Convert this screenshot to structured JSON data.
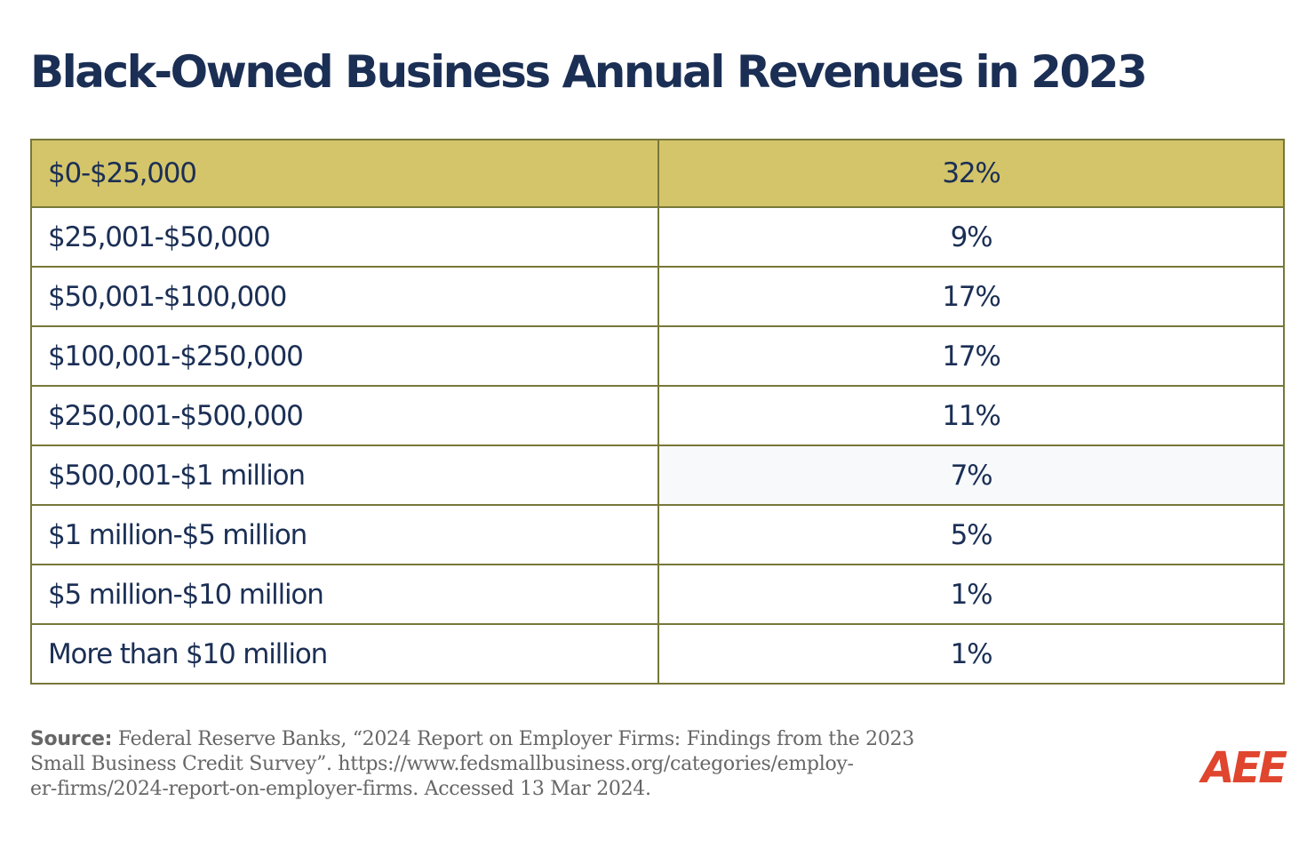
{
  "title": "Black-Owned Business Annual Revenues in 2023",
  "table": {
    "rows": [
      [
        "$0-$25,000",
        "32%"
      ],
      [
        "$25,001-$50,000",
        "9%"
      ],
      [
        "$50,001-$100,000",
        "17%"
      ],
      [
        "$100,001-$250,000",
        "17%"
      ],
      [
        "$250,001-$500,000",
        "11%"
      ],
      [
        "$500,001-$1 million",
        "7%"
      ],
      [
        "$1 million-$5 million",
        "5%"
      ],
      [
        "$5 million-$10 million",
        "1%"
      ],
      [
        "More than $10 million",
        "1%"
      ]
    ]
  },
  "source": {
    "label": "Source:",
    "lines": [
      "Federal Reserve Banks, “2024 Report on Employer Firms: Findings from the 2023",
      "Small Business Credit Survey”. https://www.fedsmallbusiness.org/categories/employ-",
      "er-firms/2024-report-on-employer-firms. Accessed 13 Mar 2024."
    ]
  },
  "logo": "AEE"
}
